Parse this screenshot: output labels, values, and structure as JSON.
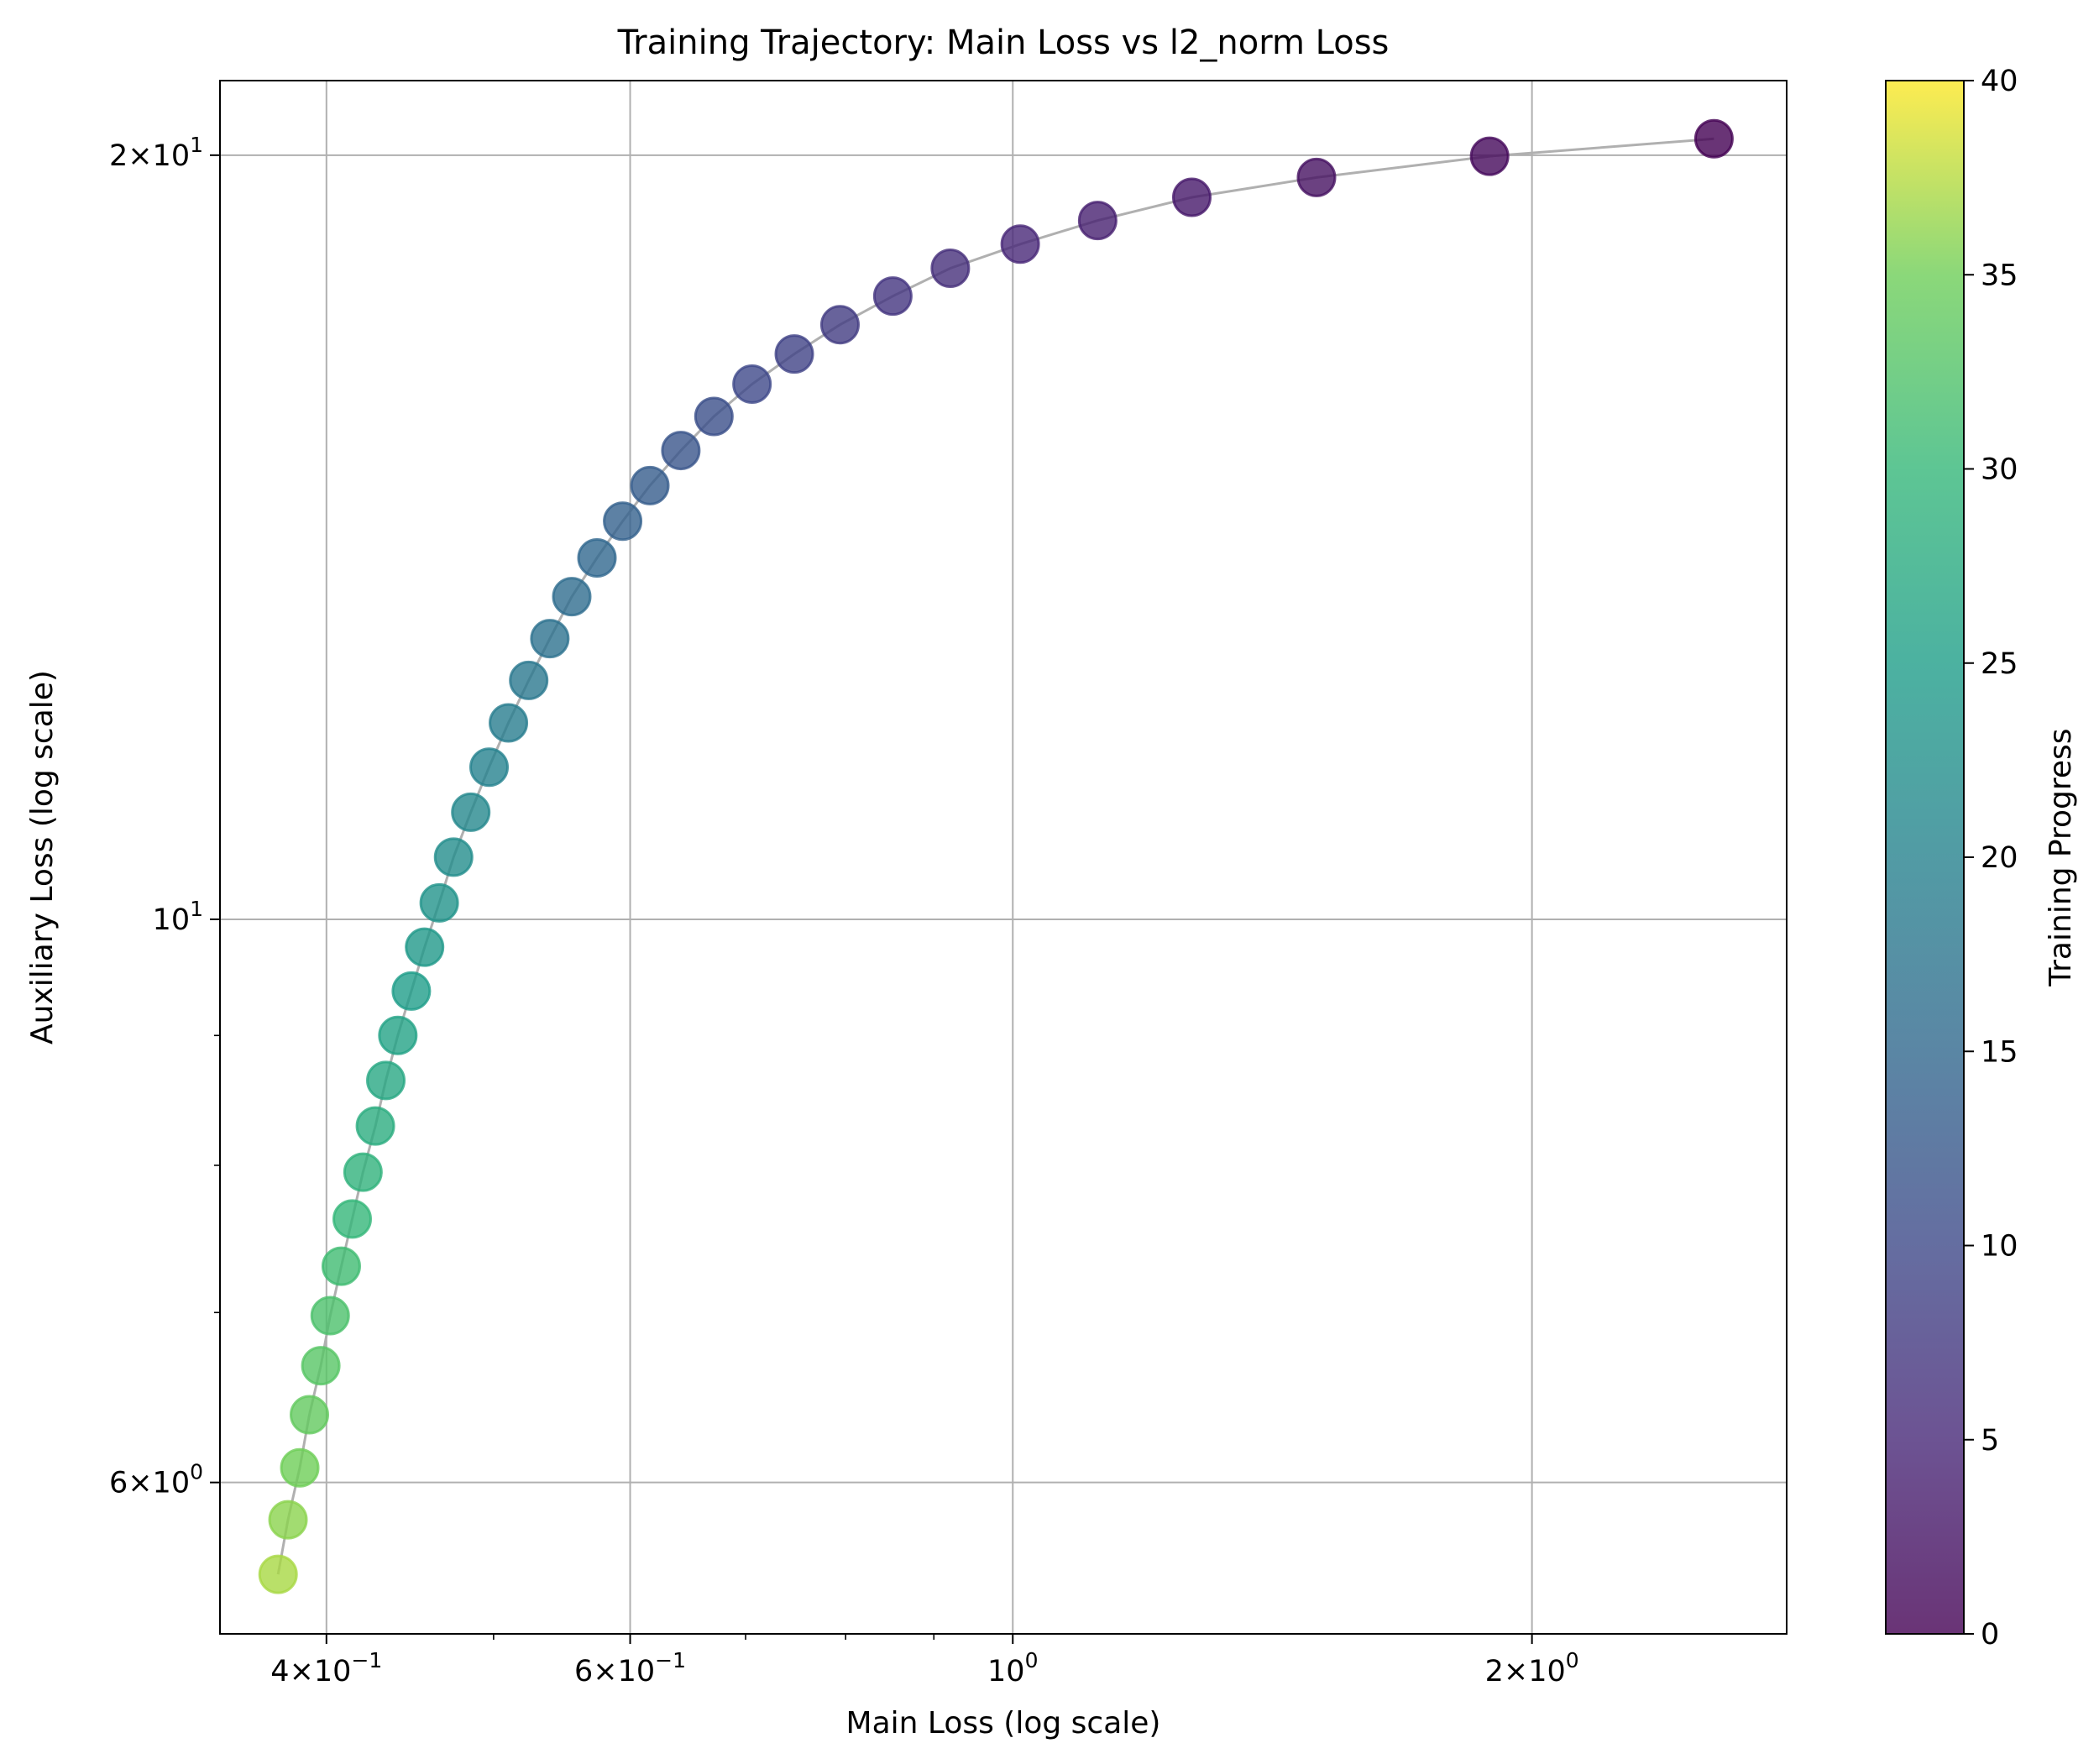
{
  "chart_data": {
    "type": "scatter",
    "title": "Training Trajectory: Main Loss vs l2_norm Loss",
    "xlabel": "Main Loss (log scale)",
    "ylabel": "Auxiliary Loss (log scale)",
    "xscale": "log",
    "yscale": "log",
    "xlim": [
      0.347,
      2.81
    ],
    "ylim": [
      5.23,
      21.4
    ],
    "grid": true,
    "x_ticks": [
      {
        "value": 0.4,
        "label_base": "4",
        "label_sup": "−1"
      },
      {
        "value": 0.6,
        "label_base": "6",
        "label_sup": "−1"
      },
      {
        "value": 1.0,
        "label_base": "10",
        "label_sup": "0"
      },
      {
        "value": 2.0,
        "label_base": "2",
        "label_sup": "0"
      }
    ],
    "x_minor_ticks": [
      0.5,
      0.7,
      0.8,
      0.9,
      3.0
    ],
    "y_ticks": [
      {
        "value": 6,
        "label_base": "6",
        "label_sup": "0"
      },
      {
        "value": 10,
        "label_base": "10",
        "label_sup": "1"
      },
      {
        "value": 20,
        "label_base": "2",
        "label_sup": "1"
      }
    ],
    "y_minor_ticks": [
      7,
      8,
      9
    ],
    "colorbar": {
      "label": "Training Progress",
      "colormap": "viridis",
      "min": 0,
      "max": 40,
      "ticks": [
        0,
        5,
        10,
        15,
        20,
        25,
        30,
        35,
        40
      ],
      "tick_labels": [
        "0",
        "5",
        "10",
        "15",
        "20",
        "25",
        "30",
        "35",
        "40"
      ]
    },
    "line_color": "#b0b0b0",
    "point_alpha": 0.8,
    "points": [
      {
        "x": 2.55,
        "y": 20.3,
        "c": 0
      },
      {
        "x": 1.89,
        "y": 19.98,
        "c": 1
      },
      {
        "x": 1.5,
        "y": 19.6,
        "c": 2
      },
      {
        "x": 1.27,
        "y": 19.25,
        "c": 3
      },
      {
        "x": 1.12,
        "y": 18.85,
        "c": 4
      },
      {
        "x": 1.01,
        "y": 18.45,
        "c": 5
      },
      {
        "x": 0.92,
        "y": 18.05,
        "c": 6
      },
      {
        "x": 0.852,
        "y": 17.6,
        "c": 7
      },
      {
        "x": 0.794,
        "y": 17.15,
        "c": 8
      },
      {
        "x": 0.747,
        "y": 16.7,
        "c": 9
      },
      {
        "x": 0.706,
        "y": 16.25,
        "c": 10
      },
      {
        "x": 0.671,
        "y": 15.78,
        "c": 11
      },
      {
        "x": 0.642,
        "y": 15.3,
        "c": 12
      },
      {
        "x": 0.616,
        "y": 14.82,
        "c": 13
      },
      {
        "x": 0.594,
        "y": 14.35,
        "c": 14
      },
      {
        "x": 0.574,
        "y": 13.88,
        "c": 15
      },
      {
        "x": 0.555,
        "y": 13.4,
        "c": 16
      },
      {
        "x": 0.539,
        "y": 12.9,
        "c": 17
      },
      {
        "x": 0.524,
        "y": 12.42,
        "c": 18
      },
      {
        "x": 0.51,
        "y": 11.95,
        "c": 19
      },
      {
        "x": 0.497,
        "y": 11.48,
        "c": 20
      },
      {
        "x": 0.485,
        "y": 11.02,
        "c": 21
      },
      {
        "x": 0.474,
        "y": 10.58,
        "c": 22
      },
      {
        "x": 0.465,
        "y": 10.15,
        "c": 23
      },
      {
        "x": 0.456,
        "y": 9.75,
        "c": 24
      },
      {
        "x": 0.448,
        "y": 9.37,
        "c": 25
      },
      {
        "x": 0.44,
        "y": 9.0,
        "c": 26
      },
      {
        "x": 0.433,
        "y": 8.64,
        "c": 27
      },
      {
        "x": 0.427,
        "y": 8.29,
        "c": 28
      },
      {
        "x": 0.42,
        "y": 7.95,
        "c": 29
      },
      {
        "x": 0.414,
        "y": 7.62,
        "c": 30
      },
      {
        "x": 0.408,
        "y": 7.3,
        "c": 31
      },
      {
        "x": 0.402,
        "y": 6.98,
        "c": 32
      },
      {
        "x": 0.397,
        "y": 6.67,
        "c": 33
      },
      {
        "x": 0.391,
        "y": 6.38,
        "c": 34
      },
      {
        "x": 0.386,
        "y": 6.08,
        "c": 35
      },
      {
        "x": 0.38,
        "y": 5.8,
        "c": 36
      },
      {
        "x": 0.375,
        "y": 5.52,
        "c": 37
      }
    ]
  }
}
